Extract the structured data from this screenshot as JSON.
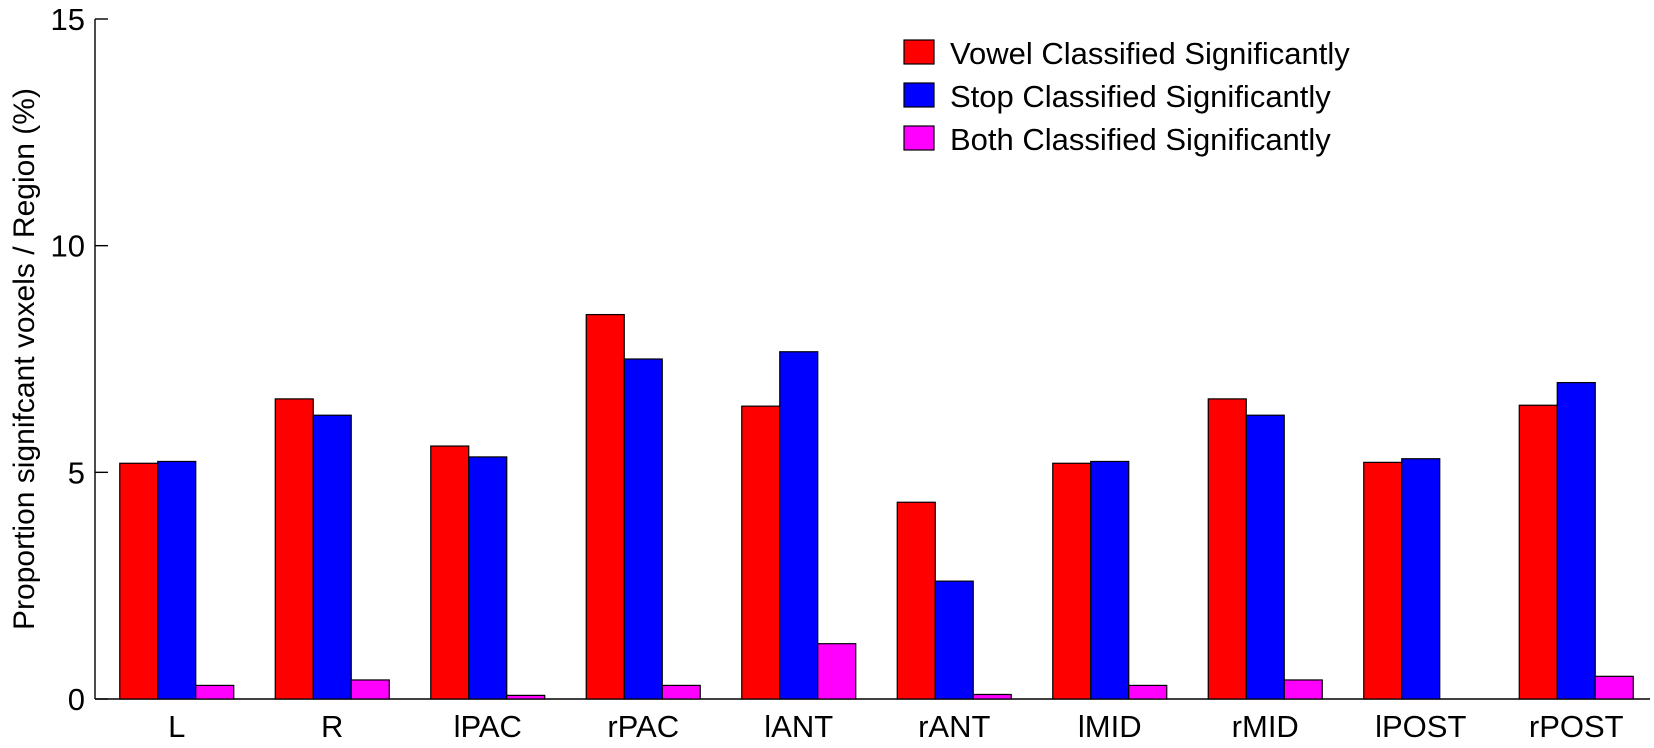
{
  "chart_data": {
    "type": "bar",
    "title": "",
    "xlabel": "",
    "ylabel": "Proportion signifcant voxels / Region (%)",
    "ylim": [
      0,
      15
    ],
    "yticks": [
      0,
      5,
      10,
      15
    ],
    "grid": false,
    "legend_position": "top-right",
    "categories": [
      "L",
      "R",
      "lPAC",
      "rPAC",
      "lANT",
      "rANT",
      "lMID",
      "rMID",
      "lPOST",
      "rPOST"
    ],
    "series": [
      {
        "name": "Vowel Classified Significantly",
        "color": "#ff0000",
        "values": [
          5.2,
          6.62,
          5.58,
          8.48,
          6.46,
          4.34,
          5.2,
          6.62,
          5.22,
          6.48
        ]
      },
      {
        "name": "Stop Classified Significantly",
        "color": "#0000ff",
        "values": [
          5.24,
          6.26,
          5.34,
          7.5,
          7.66,
          2.6,
          5.24,
          6.26,
          5.3,
          6.98
        ]
      },
      {
        "name": "Both Classified Significantly",
        "color": "#ff00ff",
        "values": [
          0.3,
          0.42,
          0.08,
          0.3,
          1.22,
          0.1,
          0.3,
          0.42,
          0.0,
          0.5
        ]
      }
    ]
  }
}
